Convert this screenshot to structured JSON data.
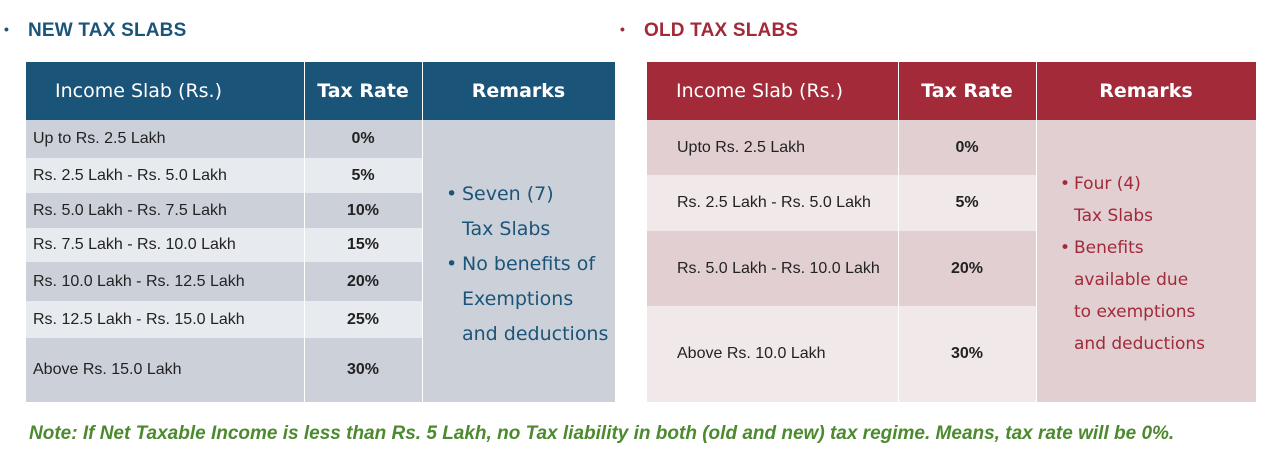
{
  "new_regime": {
    "heading": "NEW TAX SLABS",
    "columns": [
      "Income Slab (Rs.)",
      "Tax Rate",
      "Remarks"
    ],
    "rows": [
      {
        "slab": "Up to Rs. 2.5 Lakh",
        "rate": "0%"
      },
      {
        "slab": "Rs. 2.5 Lakh - Rs. 5.0 Lakh",
        "rate": "5%"
      },
      {
        "slab": "Rs. 5.0 Lakh - Rs. 7.5 Lakh",
        "rate": "10%"
      },
      {
        "slab": "Rs. 7.5 Lakh - Rs. 10.0 Lakh",
        "rate": "15%"
      },
      {
        "slab": "Rs. 10.0 Lakh - Rs. 12.5 Lakh",
        "rate": "20%"
      },
      {
        "slab": "Rs. 12.5 Lakh - Rs. 15.0 Lakh",
        "rate": "25%"
      },
      {
        "slab": "Above Rs. 15.0 Lakh",
        "rate": "30%"
      }
    ],
    "remarks": [
      {
        "line1": "Seven (7)",
        "line2": "Tax Slabs",
        "line3": ""
      },
      {
        "line1": "No benefits of",
        "line2": "Exemptions",
        "line3": "and deductions"
      }
    ]
  },
  "old_regime": {
    "heading": "OLD TAX SLABS",
    "columns": [
      "Income Slab (Rs.)",
      "Tax Rate",
      "Remarks"
    ],
    "rows": [
      {
        "slab": "Upto Rs. 2.5 Lakh",
        "rate": "0%"
      },
      {
        "slab": "Rs. 2.5 Lakh - Rs. 5.0 Lakh",
        "rate": "5%"
      },
      {
        "slab": "Rs. 5.0 Lakh - Rs. 10.0 Lakh",
        "rate": "20%"
      },
      {
        "slab": "Above Rs. 10.0 Lakh",
        "rate": "30%"
      }
    ],
    "remarks": [
      {
        "line1": "Four (4)",
        "line2": "Tax Slabs",
        "line3": ""
      },
      {
        "line1": "Benefits",
        "line2": "available due",
        "line3": "to exemptions",
        "line4": "and deductions"
      }
    ]
  },
  "note": "Note: If Net Taxable Income is less than Rs. 5 Lakh, no Tax liability in both (old and new) tax regime. Means, tax rate will be 0%.",
  "colors": {
    "new_accent": "#1b5479",
    "old_accent": "#a32a38",
    "note_green": "#4d8a2f"
  }
}
